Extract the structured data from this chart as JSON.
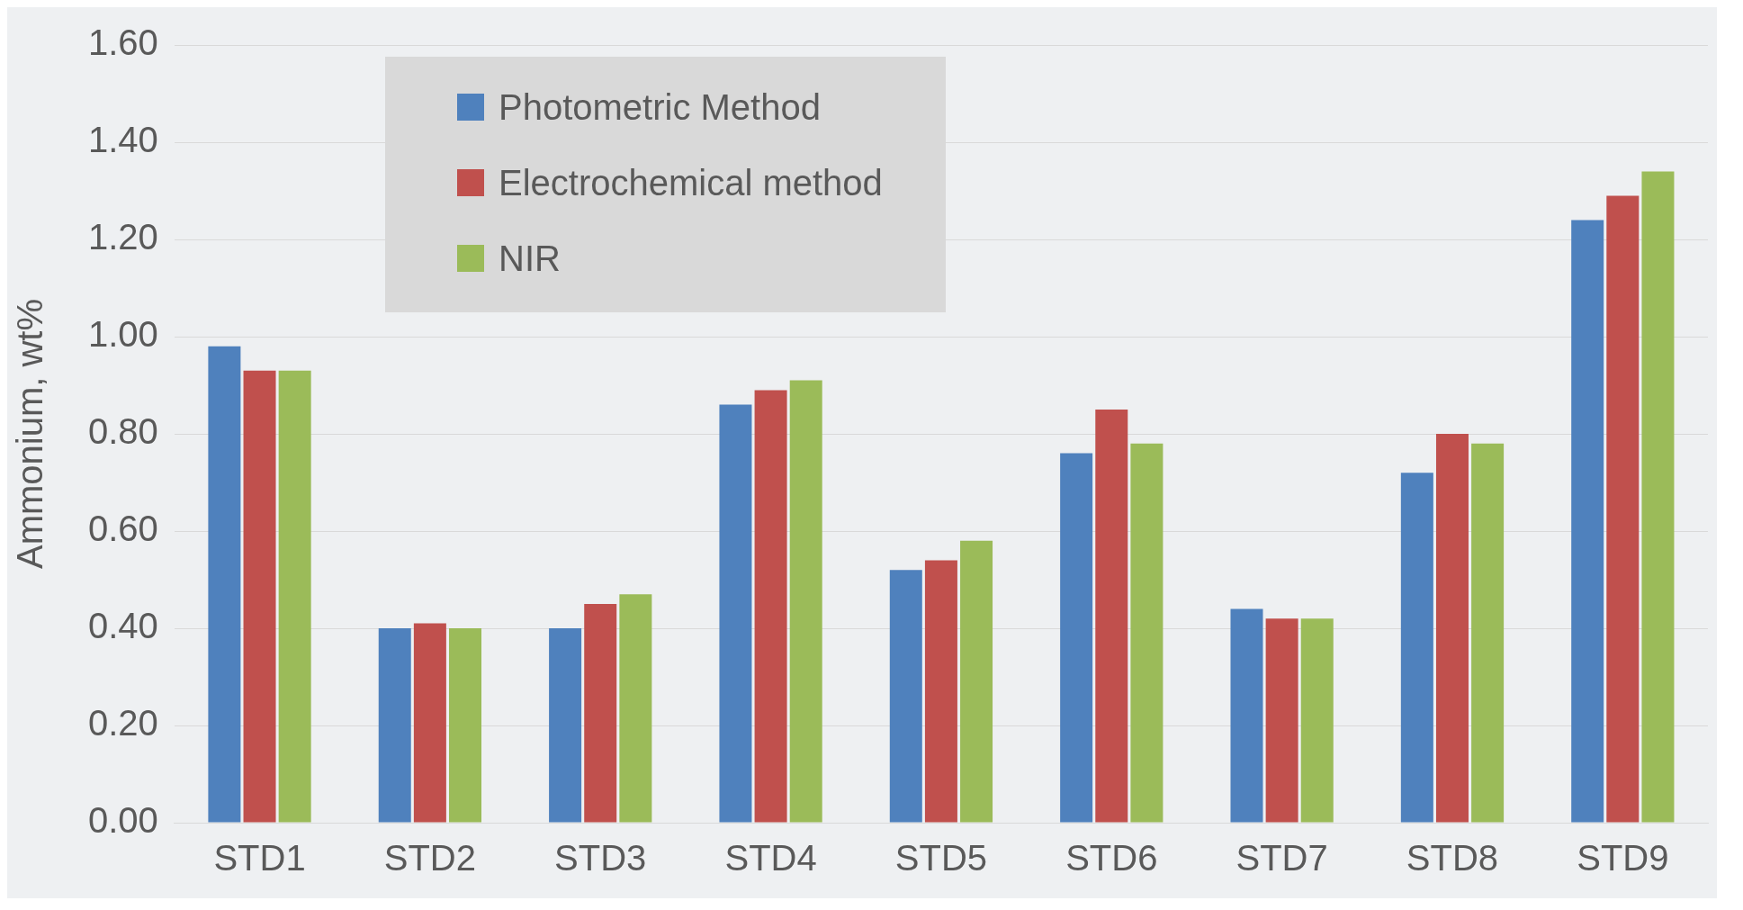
{
  "chart_data": {
    "type": "bar",
    "ylabel": "Ammonium, wt%",
    "categories": [
      "STD1",
      "STD2",
      "STD3",
      "STD4",
      "STD5",
      "STD6",
      "STD7",
      "STD8",
      "STD9"
    ],
    "series": [
      {
        "name": "Photometric Method",
        "color": "#4f81bd",
        "values": [
          0.98,
          0.4,
          0.4,
          0.86,
          0.52,
          0.76,
          0.44,
          0.72,
          1.24
        ]
      },
      {
        "name": "Electrochemical method",
        "color": "#c0504d",
        "values": [
          0.93,
          0.41,
          0.45,
          0.89,
          0.54,
          0.85,
          0.42,
          0.8,
          1.29
        ]
      },
      {
        "name": "NIR",
        "color": "#9bbb59",
        "values": [
          0.93,
          0.4,
          0.47,
          0.91,
          0.58,
          0.78,
          0.42,
          0.78,
          1.34
        ]
      }
    ],
    "ylim": [
      0,
      1.6
    ],
    "yticks": [
      {
        "value": 0,
        "label": "0.00"
      },
      {
        "value": 0.2,
        "label": "0.20"
      },
      {
        "value": 0.4,
        "label": "0.40"
      },
      {
        "value": 0.6,
        "label": "0.60"
      },
      {
        "value": 0.8,
        "label": "0.80"
      },
      {
        "value": 1.0,
        "label": "1.00"
      },
      {
        "value": 1.2,
        "label": "1.20"
      },
      {
        "value": 1.4,
        "label": "1.40"
      },
      {
        "value": 1.6,
        "label": "1.60"
      }
    ],
    "grid": "y",
    "legend": "top left"
  }
}
